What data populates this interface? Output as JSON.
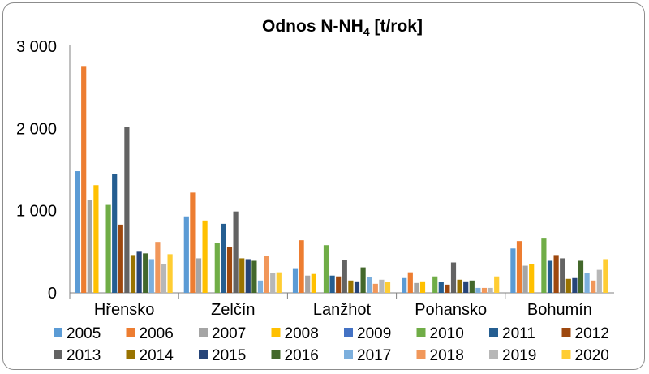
{
  "chart_data": {
    "type": "bar",
    "title_main": "Odnos N-NH",
    "title_sub": "4",
    "title_tail": " [t/rok]",
    "xlabel": "",
    "ylabel": "",
    "ylim": [
      0,
      3000
    ],
    "yticks": [
      0,
      1000,
      2000,
      3000
    ],
    "ytick_labels": [
      "0",
      "1 000",
      "2 000",
      "3 000"
    ],
    "grid": false,
    "legend_position": "bottom",
    "categories": [
      "Hřensko",
      "Zelčín",
      "Lanžhot",
      "Pohansko",
      "Bohumín"
    ],
    "series": [
      {
        "name": "2005",
        "color": "#5b9bd5",
        "values": [
          1480,
          930,
          300,
          180,
          540
        ]
      },
      {
        "name": "2006",
        "color": "#ed7d31",
        "values": [
          2760,
          1220,
          640,
          250,
          630
        ]
      },
      {
        "name": "2007",
        "color": "#a5a5a5",
        "values": [
          1130,
          420,
          210,
          120,
          330
        ]
      },
      {
        "name": "2008",
        "color": "#ffc000",
        "values": [
          1310,
          880,
          230,
          140,
          350
        ]
      },
      {
        "name": "2009",
        "color": "#4472c4",
        "values": [
          0,
          0,
          0,
          0,
          0
        ]
      },
      {
        "name": "2010",
        "color": "#70ad47",
        "values": [
          1070,
          610,
          580,
          200,
          670
        ]
      },
      {
        "name": "2011",
        "color": "#255e91",
        "values": [
          1450,
          840,
          210,
          130,
          390
        ]
      },
      {
        "name": "2012",
        "color": "#9e480e",
        "values": [
          830,
          560,
          200,
          100,
          460
        ]
      },
      {
        "name": "2013",
        "color": "#636363",
        "values": [
          2020,
          990,
          400,
          370,
          420
        ]
      },
      {
        "name": "2014",
        "color": "#997300",
        "values": [
          460,
          420,
          150,
          160,
          170
        ]
      },
      {
        "name": "2015",
        "color": "#264478",
        "values": [
          500,
          410,
          140,
          140,
          180
        ]
      },
      {
        "name": "2016",
        "color": "#43682b",
        "values": [
          480,
          390,
          310,
          150,
          390
        ]
      },
      {
        "name": "2017",
        "color": "#7cafdd",
        "values": [
          410,
          150,
          190,
          60,
          240
        ]
      },
      {
        "name": "2018",
        "color": "#f1975a",
        "values": [
          620,
          450,
          110,
          60,
          150
        ]
      },
      {
        "name": "2019",
        "color": "#b7b7b7",
        "values": [
          350,
          240,
          160,
          60,
          280
        ]
      },
      {
        "name": "2020",
        "color": "#ffcd33",
        "values": [
          470,
          250,
          130,
          200,
          410
        ]
      }
    ]
  }
}
